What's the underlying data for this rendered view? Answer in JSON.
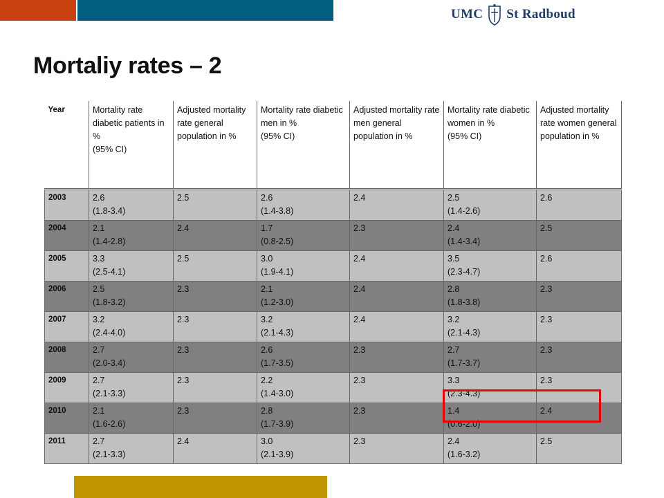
{
  "slide": {
    "title": "Mortaliy rates – 2",
    "logo_left": "UMC",
    "logo_right": "St Radboud"
  },
  "colors": {
    "orange": "#c8420f",
    "teal": "#005f7f",
    "gold": "#bf9600",
    "row_light": "#c0c0c0",
    "row_dark": "#808080",
    "highlight": "#e60000"
  },
  "table": {
    "headers": [
      "Year",
      "Mortality rate diabetic patients in %\n(95% CI)",
      "Adjusted mortality rate general population in %",
      "Mortality rate diabetic men in %\n(95% CI)",
      "Adjusted mortality rate men general population in %",
      "Mortality rate diabetic women in %\n(95% CI)",
      "Adjusted mortality rate women general population in %"
    ],
    "rows": [
      {
        "shade": "light",
        "cells": [
          "2003",
          "2.6\n(1.8-3.4)",
          "2.5",
          "2.6\n(1.4-3.8)",
          "2.4",
          "2.5\n(1.4-2.6)",
          "2.6"
        ]
      },
      {
        "shade": "dark",
        "cells": [
          "2004",
          "2.1\n(1.4-2.8)",
          "2.4",
          "1.7\n(0.8-2.5)",
          "2.3",
          "2.4\n(1.4-3.4)",
          "2.5"
        ]
      },
      {
        "shade": "light",
        "cells": [
          "2005",
          "3.3\n(2.5-4.1)",
          "2.5",
          "3.0\n(1.9-4.1)",
          "2.4",
          "3.5\n(2.3-4.7)",
          "2.6"
        ]
      },
      {
        "shade": "dark",
        "cells": [
          "2006",
          "2.5\n(1.8-3.2)",
          "2.3",
          "2.1\n(1.2-3.0)",
          "2.4",
          "2.8\n(1.8-3.8)",
          "2.3"
        ]
      },
      {
        "shade": "light",
        "cells": [
          "2007",
          "3.2\n(2.4-4.0)",
          "2.3",
          "3.2\n(2.1-4.3)",
          "2.4",
          "3.2\n(2.1-4.3)",
          "2.3"
        ]
      },
      {
        "shade": "dark",
        "cells": [
          "2008",
          "2.7\n(2.0-3.4)",
          "2.3",
          "2.6\n(1.7-3.5)",
          "2.3",
          "2.7\n(1.7-3.7)",
          "2.3"
        ]
      },
      {
        "shade": "light",
        "cells": [
          "2009",
          "2.7\n(2.1-3.3)",
          "2.3",
          "2.2\n(1.4-3.0)",
          "2.3",
          "3.3\n(2.3-4.3)",
          "2.3"
        ]
      },
      {
        "shade": "dark",
        "cells": [
          "2010",
          "2.1\n(1.6-2.6)",
          "2.3",
          "2.8\n(1.7-3.9)",
          "2.3",
          "1.4\n(0.6-2.0)",
          "2.4"
        ]
      },
      {
        "shade": "light",
        "cells": [
          "2011",
          "2.7\n(2.1-3.3)",
          "2.4",
          "3.0\n(2.1-3.9)",
          "2.3",
          "2.4\n(1.6-3.2)",
          "2.5"
        ]
      }
    ]
  }
}
